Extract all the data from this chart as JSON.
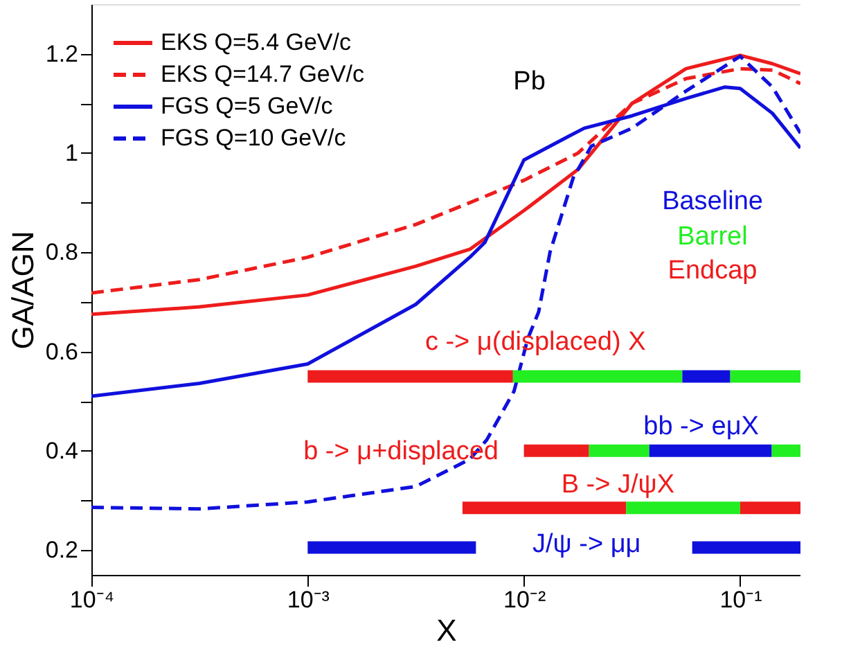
{
  "chart_data": {
    "type": "line",
    "xlabel": "X",
    "ylabel": "GA/AGN",
    "log": "x",
    "grid": false,
    "legend": "top left",
    "xlim": [
      0.0001,
      0.19
    ],
    "xticks": [
      {
        "value": 0.0001,
        "label": "10⁻⁴"
      },
      {
        "value": 0.001,
        "label": "10⁻³"
      },
      {
        "value": 0.01,
        "label": "10⁻²"
      },
      {
        "value": 0.1,
        "label": "10⁻¹"
      }
    ],
    "ylim": [
      0.15,
      1.3
    ],
    "yticks": [
      0.2,
      {
        "value": 0.3,
        "label": null
      },
      0.4,
      {
        "value": 0.5,
        "label": null
      },
      0.6,
      {
        "value": 0.7,
        "label": null
      },
      0.8,
      {
        "value": 0.9,
        "label": null
      },
      1,
      {
        "value": 1.1,
        "label": null
      },
      1.2
    ],
    "series": [
      {
        "name": "EKS  Q=5.4 GeV/c",
        "color": "#ee1c1c",
        "line_style": "solid",
        "x": [
          0.0001,
          0.000316,
          0.001,
          0.00316,
          0.00562,
          0.01,
          0.0178,
          0.0316,
          0.0562,
          0.1,
          0.141,
          0.19
        ],
        "values": [
          0.675,
          0.69,
          0.714,
          0.772,
          0.806,
          0.884,
          0.967,
          1.1,
          1.17,
          1.197,
          1.18,
          1.16
        ]
      },
      {
        "name": "EKS  Q=14.7 GeV/c",
        "color": "#ee1c1c",
        "line_style": "dashed",
        "x": [
          0.0001,
          0.000316,
          0.001,
          0.00316,
          0.00562,
          0.01,
          0.0178,
          0.0316,
          0.0562,
          0.1,
          0.141,
          0.19
        ],
        "values": [
          0.718,
          0.745,
          0.79,
          0.856,
          0.9,
          0.945,
          1.0,
          1.1,
          1.15,
          1.17,
          1.167,
          1.14
        ]
      },
      {
        "name": "FGS  Q=5 GeV/c",
        "color": "#1010dd",
        "line_style": "solid",
        "x": [
          0.0001,
          0.000316,
          0.001,
          0.00316,
          0.00562,
          0.0066,
          0.01,
          0.016,
          0.019,
          0.0316,
          0.0562,
          0.085,
          0.1,
          0.141,
          0.19
        ],
        "values": [
          0.51,
          0.536,
          0.575,
          0.695,
          0.79,
          0.82,
          0.986,
          1.033,
          1.05,
          1.075,
          1.11,
          1.133,
          1.13,
          1.08,
          1.01
        ]
      },
      {
        "name": "FGS  Q=10 GeV/c",
        "color": "#1010dd",
        "line_style": "dashed",
        "x": [
          0.0001,
          0.000316,
          0.001,
          0.00316,
          0.00562,
          0.00673,
          0.009,
          0.0104,
          0.0117,
          0.0132,
          0.0169,
          0.0205,
          0.0316,
          0.0562,
          0.1,
          0.141,
          0.19
        ],
        "values": [
          0.286,
          0.283,
          0.297,
          0.328,
          0.383,
          0.422,
          0.52,
          0.625,
          0.68,
          0.8,
          0.95,
          1.014,
          1.05,
          1.125,
          1.195,
          1.133,
          1.04
        ]
      },
      {
        "color": "#ee1c1c",
        "x": [
          0.001,
          0.0089
        ],
        "values": [
          0.55,
          0.55
        ]
      },
      {
        "color": "#22ee22",
        "x": [
          0.0089,
          0.054
        ],
        "values": [
          0.55,
          0.55
        ]
      },
      {
        "color": "#1010dd",
        "x": [
          0.054,
          0.09
        ],
        "values": [
          0.55,
          0.55
        ]
      },
      {
        "color": "#22ee22",
        "x": [
          0.09,
          0.19
        ],
        "values": [
          0.55,
          0.55
        ]
      },
      {
        "color": "#ee1c1c",
        "x": [
          0.01,
          0.02
        ],
        "values": [
          0.4,
          0.4
        ]
      },
      {
        "color": "#22ee22",
        "x": [
          0.02,
          0.038
        ],
        "values": [
          0.4,
          0.4
        ]
      },
      {
        "color": "#1010dd",
        "x": [
          0.038,
          0.14
        ],
        "values": [
          0.4,
          0.4
        ]
      },
      {
        "color": "#22ee22",
        "x": [
          0.14,
          0.19
        ],
        "values": [
          0.4,
          0.4
        ]
      },
      {
        "color": "#ee1c1c",
        "x": [
          0.0052,
          0.0297
        ],
        "values": [
          0.285,
          0.285
        ]
      },
      {
        "color": "#22ee22",
        "x": [
          0.0297,
          0.1
        ],
        "values": [
          0.285,
          0.285
        ]
      },
      {
        "color": "#ee1c1c",
        "x": [
          0.1,
          0.19
        ],
        "values": [
          0.285,
          0.285
        ]
      },
      {
        "color": "#1010dd",
        "x": [
          0.001,
          0.006
        ],
        "values": [
          0.205,
          0.205
        ]
      },
      {
        "color": "#1010dd",
        "x": [
          0.06,
          0.19
        ],
        "values": [
          0.205,
          0.205
        ]
      }
    ],
    "annotations": [
      "Pb",
      "Baseline",
      "Barrel",
      "Endcap",
      "c -> μ(displaced) X",
      "bb -> eμX",
      "b -> μ+displaced",
      "B -> J/ψX",
      "J/ψ -> μμ"
    ]
  }
}
